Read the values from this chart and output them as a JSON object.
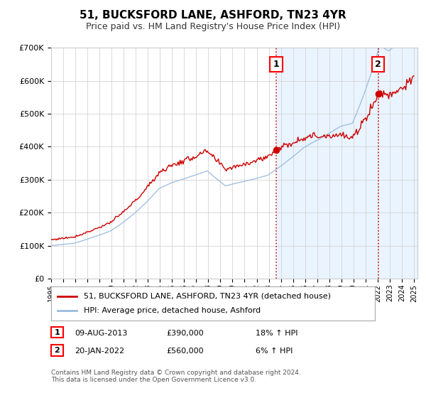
{
  "title": "51, BUCKSFORD LANE, ASHFORD, TN23 4YR",
  "subtitle": "Price paid vs. HM Land Registry's House Price Index (HPI)",
  "legend_line1": "51, BUCKSFORD LANE, ASHFORD, TN23 4YR (detached house)",
  "legend_line2": "HPI: Average price, detached house, Ashford",
  "annotation1_label": "1",
  "annotation1_date": "09-AUG-2013",
  "annotation1_price": "£390,000",
  "annotation1_hpi": "18% ↑ HPI",
  "annotation2_label": "2",
  "annotation2_date": "20-JAN-2022",
  "annotation2_price": "£560,000",
  "annotation2_hpi": "6% ↑ HPI",
  "footer": "Contains HM Land Registry data © Crown copyright and database right 2024.\nThis data is licensed under the Open Government Licence v3.0.",
  "red_color": "#cc0000",
  "blue_color": "#99bbdd",
  "bg_color_right": "#ddeeff",
  "grid_color": "#cccccc",
  "ylim": [
    0,
    700000
  ],
  "xlim_start": 1995,
  "xlim_end": 2025,
  "sale1_year": 2013.6,
  "sale2_year": 2022.05,
  "sale1_price": 390000,
  "sale2_price": 560000
}
